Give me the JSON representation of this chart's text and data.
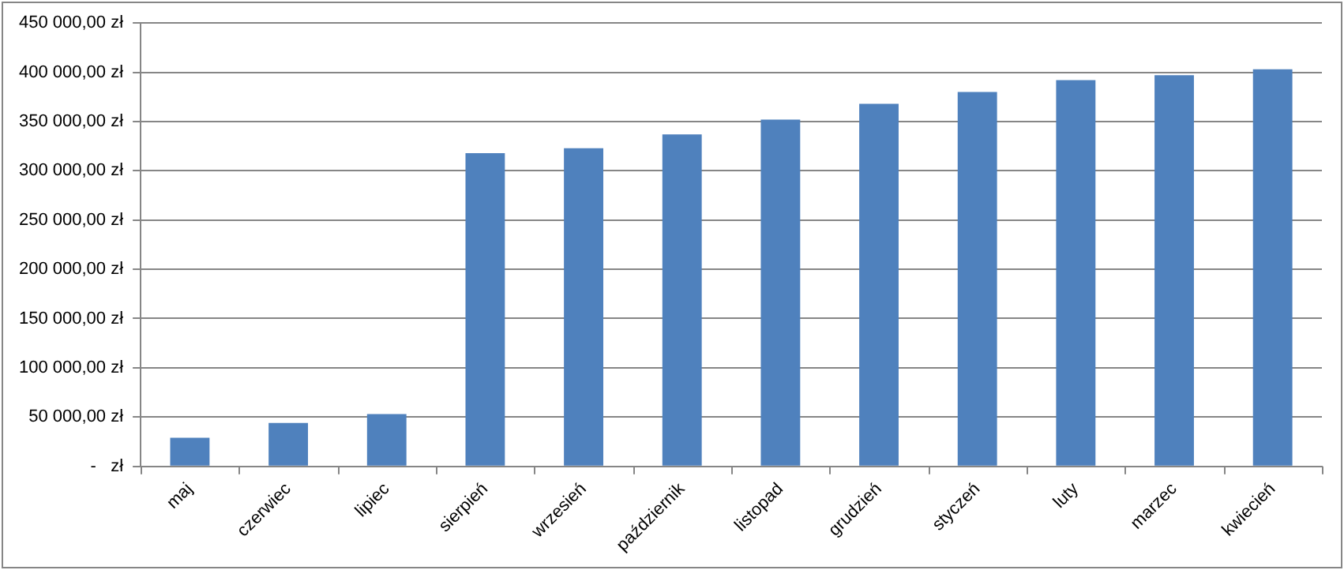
{
  "chart_data": {
    "type": "bar",
    "categories": [
      "maj",
      "czerwiec",
      "lipiec",
      "sierpień",
      "wrzesień",
      "październik",
      "listopad",
      "grudzień",
      "styczeń",
      "luty",
      "marzec",
      "kwiecień"
    ],
    "values": [
      29000,
      44000,
      53000,
      318000,
      323000,
      337000,
      352000,
      368000,
      380000,
      392000,
      397000,
      403000
    ],
    "color": "#4f81bd",
    "ylim": [
      0,
      450000
    ],
    "yticks": [
      {
        "value": 0,
        "label": "-   zł"
      },
      {
        "value": 50000,
        "label": "50 000,00 zł"
      },
      {
        "value": 100000,
        "label": "100 000,00 zł"
      },
      {
        "value": 150000,
        "label": "150 000,00 zł"
      },
      {
        "value": 200000,
        "label": "200 000,00 zł"
      },
      {
        "value": 250000,
        "label": "250 000,00 zł"
      },
      {
        "value": 300000,
        "label": "300 000,00 zł"
      },
      {
        "value": 350000,
        "label": "350 000,00 zł"
      },
      {
        "value": 400000,
        "label": "400 000,00 zł"
      },
      {
        "value": 450000,
        "label": "450 000,00 zł"
      }
    ],
    "grid": "y",
    "legend": false
  }
}
